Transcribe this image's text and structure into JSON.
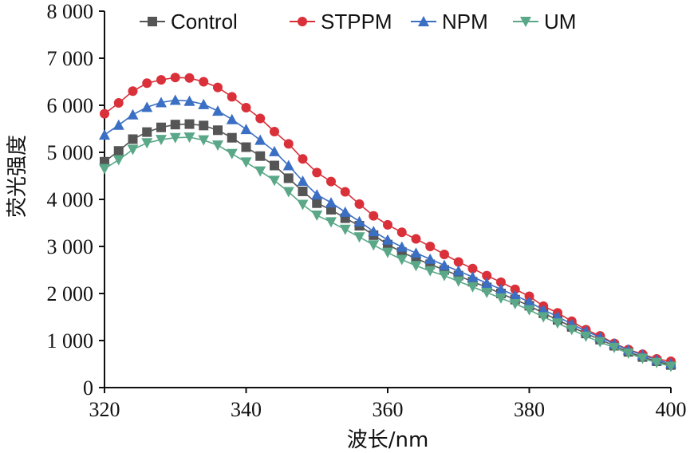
{
  "chart_data": {
    "type": "line",
    "title": "",
    "xlabel": "波长/nm",
    "ylabel": "荧光强度",
    "xlim": [
      320,
      400
    ],
    "ylim": [
      0,
      8000
    ],
    "x_ticks": [
      320,
      340,
      360,
      380,
      400
    ],
    "x_tick_labels": [
      "320",
      "340",
      "360",
      "380",
      "400"
    ],
    "y_ticks": [
      0,
      1000,
      2000,
      3000,
      4000,
      5000,
      6000,
      7000,
      8000
    ],
    "y_tick_labels": [
      "0",
      "1 000",
      "2 000",
      "3 000",
      "4 000",
      "5 000",
      "6 000",
      "7 000",
      "8 000"
    ],
    "grid": false,
    "legend_position": "top",
    "x": [
      320,
      322,
      324,
      326,
      328,
      330,
      332,
      334,
      336,
      338,
      340,
      342,
      344,
      346,
      348,
      350,
      352,
      354,
      356,
      358,
      360,
      362,
      364,
      366,
      368,
      370,
      372,
      374,
      376,
      378,
      380,
      382,
      384,
      386,
      388,
      390,
      392,
      394,
      396,
      398,
      400
    ],
    "series": [
      {
        "name": "Control",
        "color": "#555555",
        "marker": "square",
        "values": [
          4800,
          5030,
          5280,
          5430,
          5530,
          5590,
          5600,
          5570,
          5470,
          5310,
          5110,
          4920,
          4720,
          4450,
          4170,
          3920,
          3780,
          3600,
          3440,
          3240,
          3040,
          2880,
          2740,
          2620,
          2500,
          2380,
          2250,
          2130,
          2000,
          1870,
          1740,
          1580,
          1440,
          1290,
          1150,
          1020,
          890,
          760,
          650,
          560,
          480
        ]
      },
      {
        "name": "STPPM",
        "color": "#d9303a",
        "marker": "circle",
        "values": [
          5820,
          6050,
          6300,
          6470,
          6540,
          6590,
          6580,
          6500,
          6380,
          6180,
          5950,
          5720,
          5440,
          5180,
          4860,
          4570,
          4380,
          4160,
          3900,
          3650,
          3460,
          3300,
          3160,
          3000,
          2830,
          2670,
          2530,
          2380,
          2240,
          2090,
          1940,
          1730,
          1590,
          1410,
          1230,
          1100,
          940,
          810,
          710,
          610,
          560
        ]
      },
      {
        "name": "NPM",
        "color": "#3a6fc4",
        "marker": "triangle-up",
        "values": [
          5370,
          5580,
          5800,
          5960,
          6060,
          6110,
          6090,
          6020,
          5880,
          5700,
          5490,
          5260,
          5020,
          4720,
          4390,
          4100,
          3930,
          3730,
          3530,
          3320,
          3140,
          2990,
          2860,
          2730,
          2600,
          2480,
          2350,
          2220,
          2090,
          1960,
          1820,
          1650,
          1510,
          1350,
          1200,
          1070,
          930,
          800,
          690,
          590,
          510
        ]
      },
      {
        "name": "UM",
        "color": "#5aa888",
        "marker": "triangle-down",
        "values": [
          4650,
          4840,
          5060,
          5200,
          5270,
          5310,
          5320,
          5260,
          5150,
          4970,
          4790,
          4600,
          4400,
          4160,
          3890,
          3660,
          3520,
          3360,
          3200,
          3030,
          2870,
          2720,
          2590,
          2480,
          2380,
          2260,
          2140,
          2020,
          1900,
          1780,
          1650,
          1500,
          1370,
          1230,
          1090,
          970,
          850,
          730,
          620,
          530,
          450
        ]
      }
    ]
  }
}
